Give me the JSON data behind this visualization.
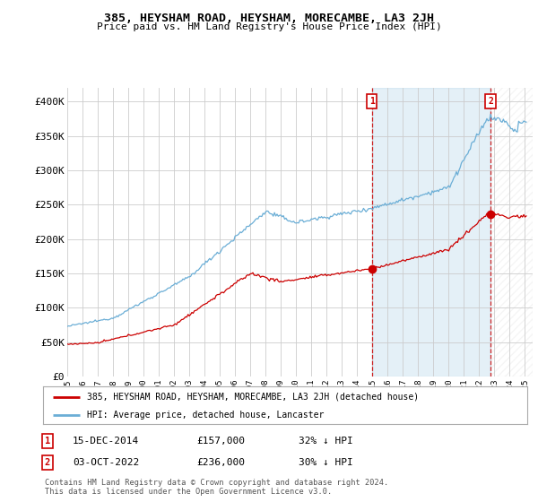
{
  "title": "385, HEYSHAM ROAD, HEYSHAM, MORECAMBE, LA3 2JH",
  "subtitle": "Price paid vs. HM Land Registry's House Price Index (HPI)",
  "ylabel_ticks": [
    "£0",
    "£50K",
    "£100K",
    "£150K",
    "£200K",
    "£250K",
    "£300K",
    "£350K",
    "£400K"
  ],
  "ytick_values": [
    0,
    50000,
    100000,
    150000,
    200000,
    250000,
    300000,
    350000,
    400000
  ],
  "ylim": [
    0,
    420000
  ],
  "legend_line1": "385, HEYSHAM ROAD, HEYSHAM, MORECAMBE, LA3 2JH (detached house)",
  "legend_line2": "HPI: Average price, detached house, Lancaster",
  "annotation1_label": "1",
  "annotation1_date": "15-DEC-2014",
  "annotation1_price": "£157,000",
  "annotation1_hpi": "32% ↓ HPI",
  "annotation2_label": "2",
  "annotation2_date": "03-OCT-2022",
  "annotation2_price": "£236,000",
  "annotation2_hpi": "30% ↓ HPI",
  "footnote": "Contains HM Land Registry data © Crown copyright and database right 2024.\nThis data is licensed under the Open Government Licence v3.0.",
  "hpi_color": "#6baed6",
  "price_color": "#cc0000",
  "background_color": "#ffffff",
  "grid_color": "#cccccc",
  "shade_color": "#ddeeff",
  "sale1_year": 2014.958,
  "sale1_price": 157000,
  "sale2_year": 2022.75,
  "sale2_price": 236000,
  "xlim_left": 1995.0,
  "xlim_right": 2025.5
}
